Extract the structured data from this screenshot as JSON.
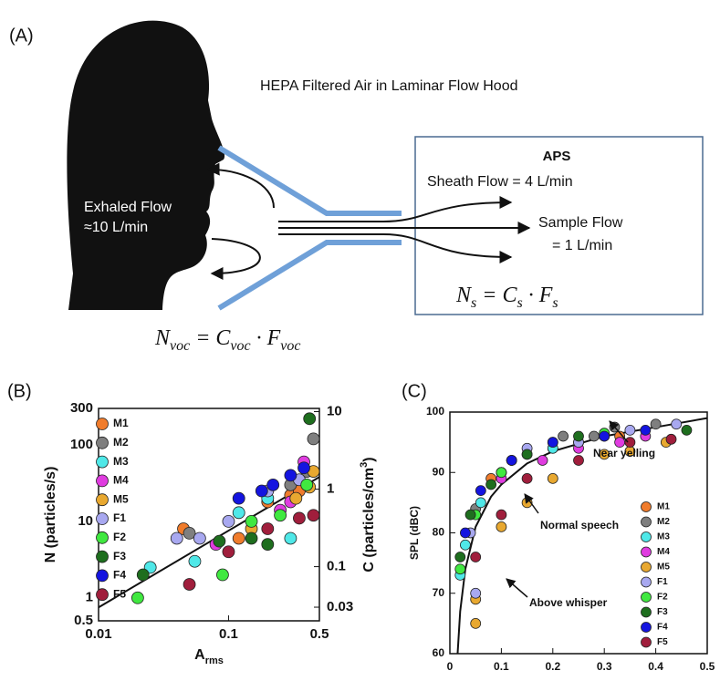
{
  "diagram": {
    "panel_label": "(A)",
    "hood": "HEPA Filtered Air in Laminar Flow Hood",
    "aps": "APS",
    "sheath": "Sheath Flow = 4 L/min",
    "sample_1": "Sample Flow",
    "sample_2": "= 1 L/min",
    "exhaled_1": "Exhaled Flow",
    "exhaled_2": "≈10 L/min",
    "eq_sample": [
      "N",
      "s",
      " = C",
      "s",
      " · F",
      "s"
    ],
    "eq_voc": [
      "N",
      "voc",
      " = C",
      "voc",
      " · F",
      "voc"
    ]
  },
  "chart_data": [
    {
      "type": "scatter",
      "panel_label": "(B)",
      "xlog": true,
      "ylog": true,
      "xlim": [
        0.01,
        0.5
      ],
      "xticks": [
        0.01,
        0.1,
        0.5
      ],
      "ylim": [
        0.5,
        300
      ],
      "yticks": [
        0.5,
        1,
        10,
        100,
        300
      ],
      "y2lim": [
        0.02,
        11
      ],
      "y2ticks": [
        0.03,
        0.1,
        1,
        10
      ],
      "xlabel": [
        "A",
        "rms"
      ],
      "ylabel": "N (particles/s)",
      "y2label": [
        "C (particles/cm",
        "3",
        ")"
      ],
      "legend": "upper left",
      "fit_line": {
        "x": [
          0.01,
          0.5
        ],
        "y": [
          0.75,
          38
        ]
      },
      "series": [
        {
          "name": "M1",
          "color": "#f07c2c",
          "x": [
            0.045,
            0.12,
            0.3,
            0.35,
            0.2
          ],
          "values": [
            8,
            6,
            22,
            25,
            18
          ]
        },
        {
          "name": "M2",
          "color": "#7f7f7f",
          "x": [
            0.45,
            0.3,
            0.05,
            0.4
          ],
          "values": [
            120,
            30,
            7,
            45
          ]
        },
        {
          "name": "M3",
          "color": "#4fe8e8",
          "x": [
            0.025,
            0.055,
            0.12,
            0.3,
            0.2
          ],
          "values": [
            2.5,
            3,
            13,
            6,
            20
          ]
        },
        {
          "name": "M4",
          "color": "#e03ce0",
          "x": [
            0.38,
            0.25,
            0.08,
            0.3
          ],
          "values": [
            60,
            14,
            5,
            18
          ]
        },
        {
          "name": "M5",
          "color": "#e8a830",
          "x": [
            0.45,
            0.15,
            0.33,
            0.42
          ],
          "values": [
            45,
            8,
            20,
            28
          ]
        },
        {
          "name": "F1",
          "color": "#a8a8f0",
          "x": [
            0.04,
            0.1,
            0.2,
            0.35,
            0.06
          ],
          "values": [
            6,
            10,
            25,
            35,
            6
          ]
        },
        {
          "name": "F2",
          "color": "#40e840",
          "x": [
            0.02,
            0.09,
            0.15,
            0.25,
            0.4
          ],
          "values": [
            1,
            2,
            10,
            12,
            30
          ]
        },
        {
          "name": "F3",
          "color": "#1e6e1e",
          "x": [
            0.022,
            0.085,
            0.15,
            0.2,
            0.42
          ],
          "values": [
            2,
            5.5,
            6,
            5,
            220
          ]
        },
        {
          "name": "F4",
          "color": "#1414e0",
          "x": [
            0.12,
            0.22,
            0.3,
            0.38,
            0.18
          ],
          "values": [
            20,
            30,
            40,
            50,
            25
          ]
        },
        {
          "name": "F5",
          "color": "#a01e3c",
          "x": [
            0.05,
            0.1,
            0.2,
            0.35,
            0.45
          ],
          "values": [
            1.5,
            4,
            8,
            11,
            12
          ]
        }
      ]
    },
    {
      "type": "scatter",
      "panel_label": "(C)",
      "xlog": false,
      "ylog": false,
      "xlim": [
        0,
        0.5
      ],
      "xticks": [
        0,
        0.1,
        0.2,
        0.3,
        0.4,
        0.5
      ],
      "ylim": [
        60,
        100
      ],
      "yticks": [
        60,
        70,
        80,
        90,
        100
      ],
      "xlabel": [
        "A",
        "rms"
      ],
      "ylabel": "SPL (dBC)",
      "legend": "lower right",
      "annotations": [
        "Near yelling",
        "Normal speech",
        "Above whisper"
      ],
      "fit_line": {
        "x": [
          0.015,
          0.02,
          0.03,
          0.05,
          0.08,
          0.1,
          0.15,
          0.2,
          0.3,
          0.4,
          0.5
        ],
        "y": [
          60,
          67,
          74,
          81,
          86,
          88,
          91.5,
          93.5,
          96,
          97.5,
          99
        ]
      },
      "series": [
        {
          "name": "M1",
          "color": "#f07c2c",
          "x": [
            0.08,
            0.15,
            0.25,
            0.33,
            0.2,
            0.1
          ],
          "values": [
            89,
            93,
            95,
            96,
            94,
            90
          ]
        },
        {
          "name": "M2",
          "color": "#7f7f7f",
          "x": [
            0.05,
            0.12,
            0.22,
            0.32,
            0.4,
            0.28
          ],
          "values": [
            84,
            92,
            96,
            97.5,
            98,
            96
          ]
        },
        {
          "name": "M3",
          "color": "#4fe8e8",
          "x": [
            0.02,
            0.03,
            0.06,
            0.1,
            0.2,
            0.3
          ],
          "values": [
            73,
            78,
            85,
            90,
            94,
            96
          ]
        },
        {
          "name": "M4",
          "color": "#e03ce0",
          "x": [
            0.1,
            0.18,
            0.25,
            0.33,
            0.38
          ],
          "values": [
            89,
            92,
            94,
            95,
            96
          ]
        },
        {
          "name": "M5",
          "color": "#e8a830",
          "x": [
            0.05,
            0.05,
            0.1,
            0.15,
            0.2,
            0.3,
            0.35,
            0.42
          ],
          "values": [
            69,
            65,
            81,
            85,
            89,
            93,
            93.5,
            95
          ]
        },
        {
          "name": "F1",
          "color": "#a8a8f0",
          "x": [
            0.04,
            0.05,
            0.15,
            0.25,
            0.35,
            0.44
          ],
          "values": [
            80,
            70,
            94,
            95,
            97,
            98
          ]
        },
        {
          "name": "F2",
          "color": "#40e840",
          "x": [
            0.02,
            0.05,
            0.1,
            0.2,
            0.3,
            0.12
          ],
          "values": [
            74,
            83,
            90,
            95,
            96.5,
            92
          ]
        },
        {
          "name": "F3",
          "color": "#1e6e1e",
          "x": [
            0.02,
            0.04,
            0.08,
            0.15,
            0.25,
            0.46
          ],
          "values": [
            76,
            83,
            88,
            93,
            96,
            97
          ]
        },
        {
          "name": "F4",
          "color": "#1414e0",
          "x": [
            0.03,
            0.06,
            0.12,
            0.2,
            0.3,
            0.38
          ],
          "values": [
            80,
            87,
            92,
            95,
            96,
            97
          ]
        },
        {
          "name": "F5",
          "color": "#a01e3c",
          "x": [
            0.05,
            0.1,
            0.15,
            0.25,
            0.35,
            0.43
          ],
          "values": [
            76,
            83,
            89,
            92,
            95,
            95.5
          ]
        }
      ]
    }
  ]
}
